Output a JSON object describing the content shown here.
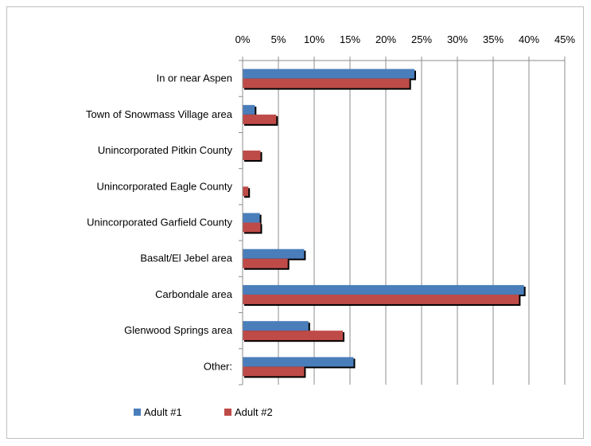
{
  "chart_data": {
    "type": "bar",
    "orientation": "horizontal",
    "title": "",
    "xlabel": "",
    "ylabel": "",
    "xlim": [
      0,
      45
    ],
    "x_ticks": [
      "0%",
      "5%",
      "10%",
      "15%",
      "20%",
      "25%",
      "30%",
      "35%",
      "40%",
      "45%"
    ],
    "x_axis_position": "top",
    "grid": true,
    "legend_position": "bottom-left",
    "categories": [
      "In or near Aspen",
      "Town of Snowmass Village area",
      "Unincorporated Pitkin County",
      "Unincorporated Eagle County",
      "Unincorporated Garfield County",
      "Basalt/El Jebel area",
      "Carbondale area",
      "Glenwood Springs area",
      "Other:"
    ],
    "series": [
      {
        "name": "Adult #1",
        "color": "#4a7ebb",
        "values": [
          24.0,
          1.7,
          0,
          0,
          2.4,
          8.6,
          39.3,
          9.2,
          15.5
        ]
      },
      {
        "name": "Adult #2",
        "color": "#be4b48",
        "values": [
          23.3,
          4.7,
          2.5,
          0.8,
          2.5,
          6.3,
          38.6,
          14.0,
          8.6
        ]
      }
    ]
  }
}
